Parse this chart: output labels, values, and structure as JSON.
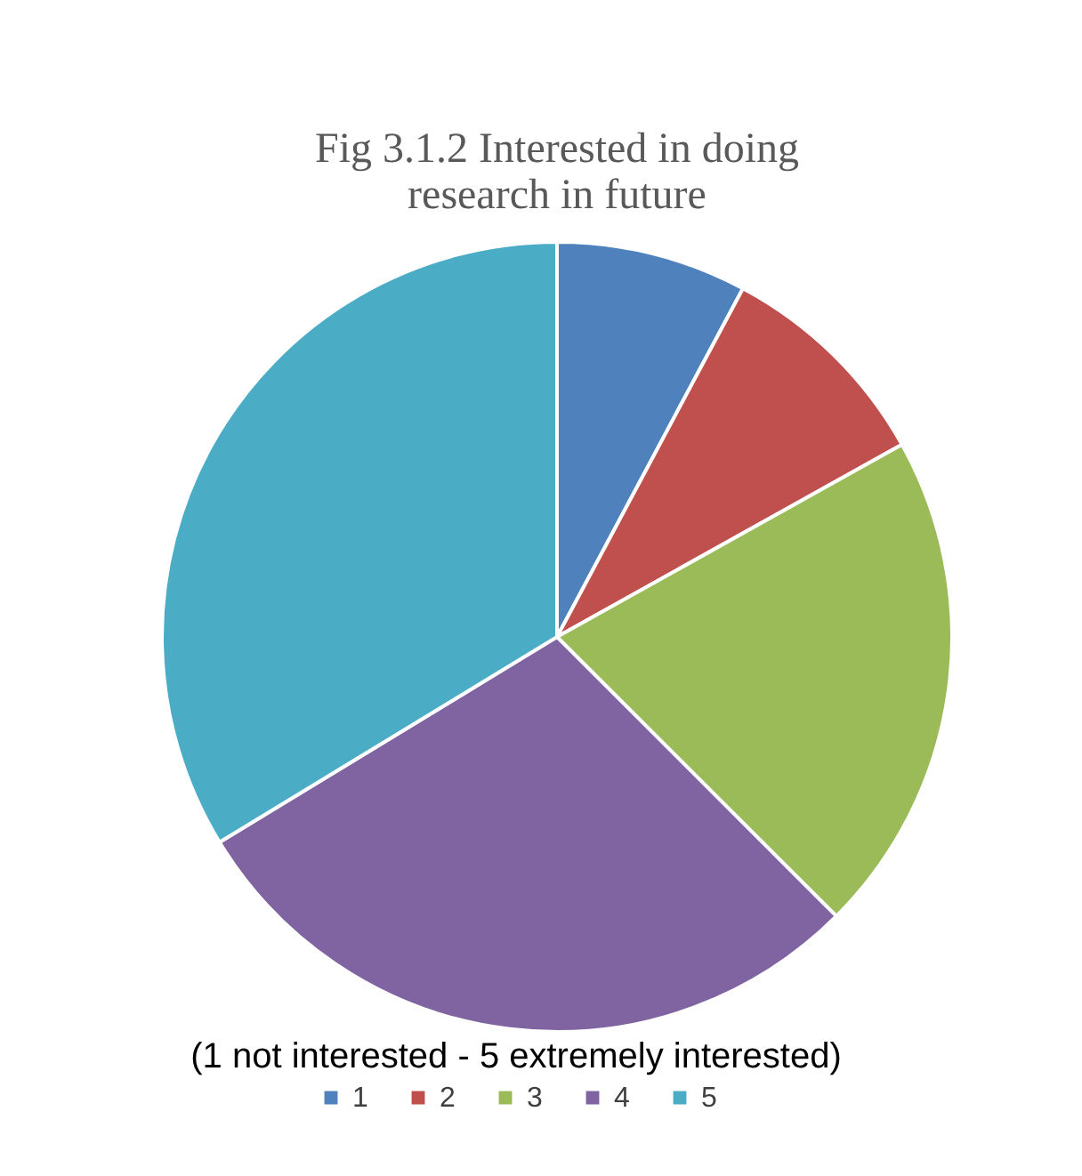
{
  "chart_data": {
    "type": "pie",
    "title": [
      "Fig 3.1.2 Interested in doing",
      "research in future"
    ],
    "legend_title": "(1 not interested - 5 extremely interested)",
    "legend": "bottom",
    "categories": [
      "1",
      "2",
      "3",
      "4",
      "5"
    ],
    "values": [
      7.8,
      9.1,
      20.6,
      28.8,
      33.7
    ],
    "colors": [
      "#4f81bd",
      "#c0504d",
      "#9bbb59",
      "#8064a2",
      "#4bacc6"
    ]
  }
}
